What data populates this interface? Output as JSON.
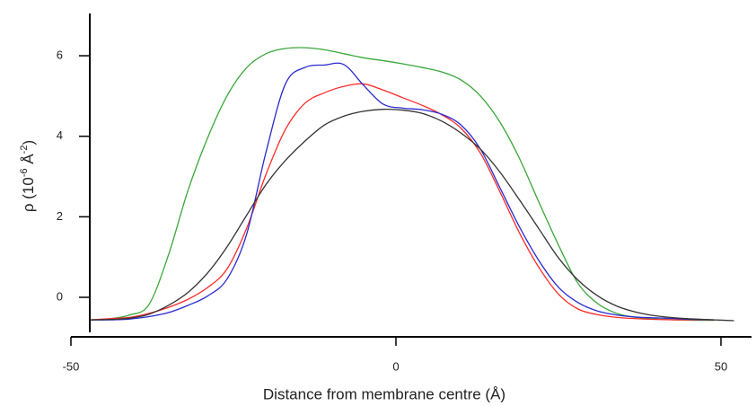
{
  "chart_data": {
    "type": "line",
    "xlabel": "Distance from membrane centre (Å)",
    "ylabel_parts": [
      "ρ (10",
      "-6",
      " Å",
      "-2",
      ")"
    ],
    "x": [
      -47,
      -44,
      -41,
      -38,
      -35,
      -32,
      -29,
      -26,
      -23,
      -20,
      -17,
      -14,
      -11,
      -8,
      -5,
      -2,
      1,
      4,
      7,
      10,
      13,
      16,
      19,
      22,
      25,
      28,
      31,
      34,
      37,
      40,
      43,
      46,
      49,
      52
    ],
    "series": [
      {
        "color": "#3aa63a",
        "values": [
          -0.56,
          -0.53,
          -0.44,
          -0.18,
          1.05,
          2.65,
          3.95,
          5.0,
          5.7,
          6.05,
          6.18,
          6.2,
          6.15,
          6.05,
          5.95,
          5.88,
          5.8,
          5.71,
          5.6,
          5.4,
          5.0,
          4.35,
          3.45,
          2.36,
          1.3,
          0.35,
          -0.15,
          -0.4,
          -0.5,
          -0.54,
          -0.56,
          -0.57,
          -0.57,
          null
        ]
      },
      {
        "color": "#ff2a2a",
        "values": [
          -0.56,
          -0.53,
          -0.5,
          -0.4,
          -0.25,
          -0.05,
          0.24,
          0.7,
          1.7,
          3.05,
          4.17,
          4.82,
          5.08,
          5.24,
          5.3,
          5.15,
          4.96,
          4.77,
          4.54,
          4.2,
          3.58,
          2.62,
          1.6,
          0.74,
          0.08,
          -0.29,
          -0.43,
          -0.5,
          -0.53,
          -0.55,
          -0.56,
          -0.56,
          -0.56,
          null
        ]
      },
      {
        "color": "#2a2ad0",
        "values": [
          -0.56,
          -0.56,
          -0.54,
          -0.48,
          -0.38,
          -0.2,
          0.03,
          0.45,
          1.55,
          3.6,
          5.3,
          5.71,
          5.77,
          5.78,
          5.27,
          4.8,
          4.7,
          4.66,
          4.55,
          4.28,
          3.68,
          2.72,
          1.75,
          0.91,
          0.25,
          -0.13,
          -0.34,
          -0.44,
          -0.49,
          -0.51,
          -0.53,
          -0.55,
          -0.56,
          null
        ]
      },
      {
        "color": "#333333",
        "values": [
          -0.56,
          -0.55,
          -0.52,
          -0.42,
          -0.2,
          0.12,
          0.6,
          1.25,
          2.03,
          2.8,
          3.4,
          3.88,
          4.28,
          4.5,
          4.62,
          4.67,
          4.65,
          4.57,
          4.38,
          4.08,
          3.68,
          3.11,
          2.42,
          1.7,
          0.98,
          0.43,
          0.04,
          -0.22,
          -0.37,
          -0.46,
          -0.51,
          -0.54,
          -0.56,
          -0.58
        ]
      }
    ],
    "xlim": [
      -50,
      54.7
    ],
    "xticks": [
      -50,
      0,
      50
    ],
    "ylim": [
      -0.87,
      7.05
    ],
    "yticks": [
      0,
      2,
      4,
      6
    ]
  }
}
